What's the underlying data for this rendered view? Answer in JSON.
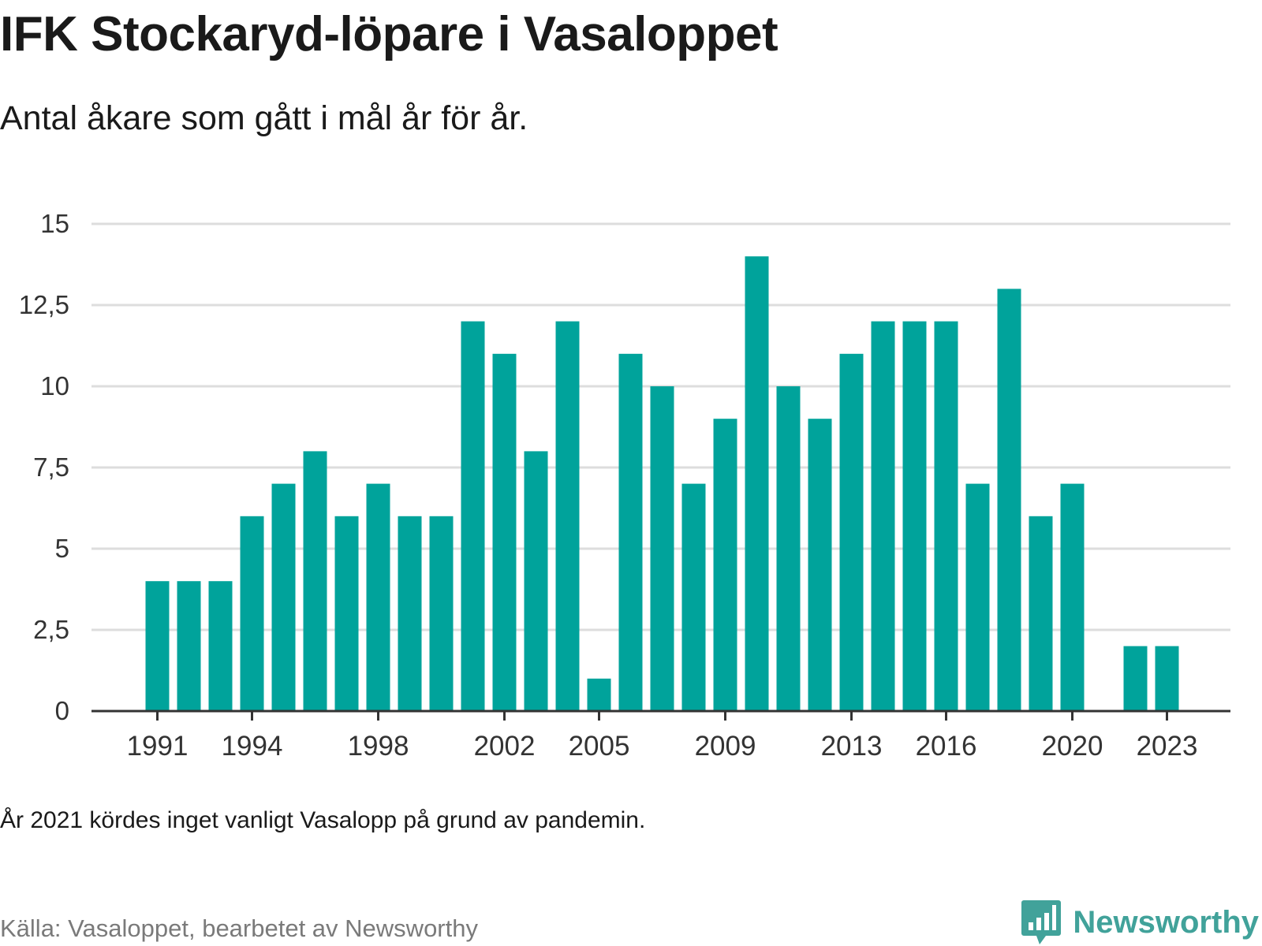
{
  "header": {
    "title": "IFK Stockaryd-löpare i Vasaloppet",
    "subtitle": "Antal åkare som gått i mål år för år."
  },
  "footer": {
    "note": "År 2021 kördes inget vanligt Vasalopp på grund av pandemin.",
    "source": "Källa: Vasaloppet, bearbetet av Newsworthy",
    "brand": "Newsworthy",
    "brand_icon": "newsworthy-logo-icon"
  },
  "colors": {
    "bar": "#00a39b",
    "grid": "#dddddd",
    "axis": "#333333",
    "brand": "#41a29a"
  },
  "chart_data": {
    "type": "bar",
    "title": "IFK Stockaryd-löpare i Vasaloppet",
    "subtitle": "Antal åkare som gått i mål år för år.",
    "x": [
      1991,
      1992,
      1993,
      1994,
      1995,
      1996,
      1997,
      1998,
      1999,
      2000,
      2001,
      2002,
      2003,
      2004,
      2005,
      2006,
      2007,
      2008,
      2009,
      2010,
      2011,
      2012,
      2013,
      2014,
      2015,
      2016,
      2017,
      2018,
      2019,
      2020,
      2021,
      2022,
      2023
    ],
    "values": [
      4,
      4,
      4,
      6,
      7,
      8,
      6,
      7,
      6,
      6,
      12,
      11,
      8,
      12,
      1,
      11,
      10,
      7,
      9,
      14,
      10,
      9,
      11,
      12,
      12,
      12,
      7,
      13,
      6,
      7,
      null,
      2,
      2
    ],
    "xticks": [
      1991,
      1994,
      1998,
      2002,
      2005,
      2009,
      2013,
      2016,
      2020,
      2023
    ],
    "yticks": [
      0,
      2.5,
      5,
      7.5,
      10,
      12.5,
      15
    ],
    "ytick_labels": [
      "0",
      "2,5",
      "5",
      "7,5",
      "10",
      "12,5",
      "15"
    ],
    "ylim": [
      0,
      15
    ],
    "grid": true,
    "xlabel": "",
    "ylabel": ""
  }
}
